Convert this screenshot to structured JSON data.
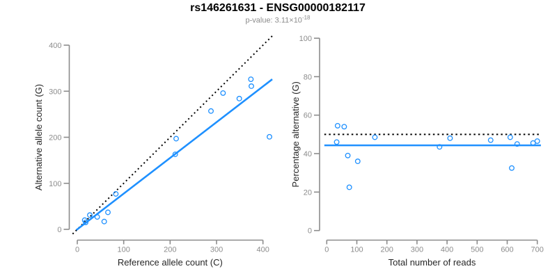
{
  "colors": {
    "accent_blue": "#1E90FF",
    "dotted_black": "#000000",
    "axis_gray": "#8C8C8C",
    "axis_title_dark": "#262626",
    "background": "#FFFFFF"
  },
  "chart_data": {
    "figure_title": "rs146261631 - ENSG00000182117",
    "p_value_text": "p-value: 3.11×10",
    "p_value_exponent": "-18",
    "plots": [
      {
        "type": "scatter",
        "name": "allele-counts",
        "xlabel": "Reference allele count (C)",
        "ylabel": "Alternative allele count (G)",
        "xticks": [
          0,
          100,
          200,
          300,
          400
        ],
        "yticks": [
          0,
          100,
          200,
          300,
          400
        ],
        "xlim": [
          0,
          420
        ],
        "ylim": [
          0,
          415
        ],
        "grid": false,
        "points": [
          [
            16,
            20
          ],
          [
            18,
            15
          ],
          [
            27,
            31
          ],
          [
            43,
            27
          ],
          [
            58,
            17
          ],
          [
            66,
            37
          ],
          [
            83,
            77
          ],
          [
            211,
            163
          ],
          [
            213,
            197
          ],
          [
            288,
            257
          ],
          [
            314,
            296
          ],
          [
            349,
            284
          ],
          [
            374,
            326
          ],
          [
            375,
            311
          ],
          [
            414,
            201
          ]
        ],
        "lines": [
          {
            "name": "identity",
            "type": "dotted",
            "color": "#000000",
            "slope": 1,
            "intercept": 0,
            "x_range": [
              -10,
              420
            ]
          },
          {
            "name": "fit",
            "type": "solid",
            "color": "#1E90FF",
            "slope": 0.776,
            "intercept": 0,
            "x_range": [
              -2,
              420
            ]
          }
        ]
      },
      {
        "type": "scatter",
        "name": "percentage-vs-reads",
        "xlabel": "Total number of reads",
        "ylabel": "Percentage alternative (G)",
        "xticks": [
          0,
          100,
          200,
          300,
          400,
          500,
          600,
          700
        ],
        "yticks": [
          0,
          20,
          40,
          60,
          80,
          100
        ],
        "xlim": [
          0,
          712
        ],
        "ylim": [
          0,
          100
        ],
        "grid": false,
        "points": [
          [
            33,
            46
          ],
          [
            36,
            54.5
          ],
          [
            58,
            54
          ],
          [
            70,
            39
          ],
          [
            75,
            22.5
          ],
          [
            103,
            36
          ],
          [
            160,
            48.5
          ],
          [
            375,
            43.5
          ],
          [
            410,
            48
          ],
          [
            545,
            47
          ],
          [
            610,
            48.5
          ],
          [
            615,
            32.5
          ],
          [
            633,
            45
          ],
          [
            686,
            45.5
          ],
          [
            700,
            46.5
          ]
        ],
        "lines": [
          {
            "name": "expected",
            "type": "dotted",
            "color": "#000000",
            "y": 50,
            "x_range": [
              -8,
              712
            ]
          },
          {
            "name": "fit",
            "type": "solid",
            "color": "#1E90FF",
            "y": 44.3,
            "x_range": [
              -8,
              712
            ]
          }
        ]
      }
    ]
  }
}
